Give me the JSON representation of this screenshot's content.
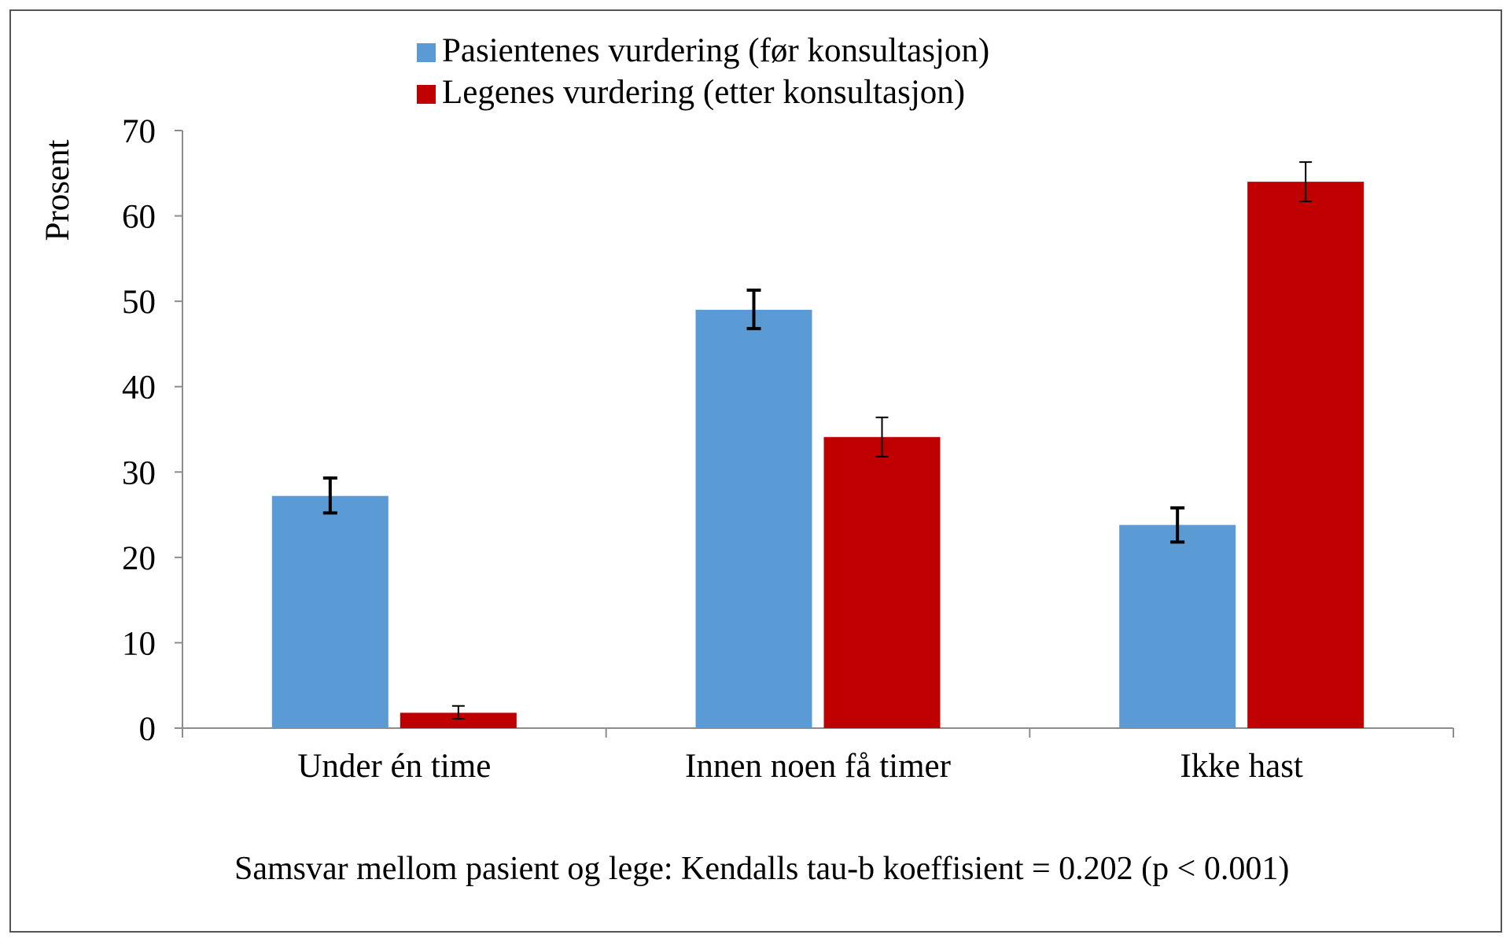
{
  "chart_data": {
    "type": "bar",
    "ylabel": "Prosent",
    "xlabel": "",
    "ylim": [
      0,
      70
    ],
    "yticks": [
      0,
      10,
      20,
      30,
      40,
      50,
      60,
      70
    ],
    "grid": false,
    "legend_position": "top-center",
    "categories": [
      "Under én time",
      "Innen noen få timer",
      "Ikke hast"
    ],
    "series": [
      {
        "name": "Pasientenes vurdering (før konsultasjon)",
        "color": "#5b9bd5",
        "values": [
          27.2,
          49.0,
          23.8
        ],
        "error_low": [
          25.2,
          46.8,
          21.8
        ],
        "error_high": [
          29.3,
          51.3,
          25.8
        ]
      },
      {
        "name": "Legenes vurdering (etter konsultasjon)",
        "color": "#c00000",
        "values": [
          1.8,
          34.1,
          64.0
        ],
        "error_low": [
          1.1,
          31.8,
          61.7
        ],
        "error_high": [
          2.6,
          36.4,
          66.3
        ]
      }
    ]
  },
  "note": "Samsvar mellom pasient og lege:  Kendalls tau-b koeffisient = 0.202 (p < 0.001)"
}
